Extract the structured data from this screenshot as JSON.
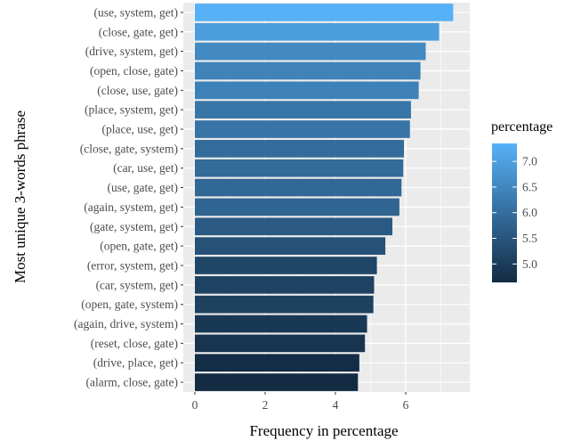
{
  "chart_data": {
    "type": "bar",
    "orientation": "horizontal",
    "xlabel": "Frequency in percentage",
    "ylabel": "Most unique 3-words phrase",
    "xlim": [
      0,
      7.6
    ],
    "xticks": [
      0,
      2,
      4,
      6
    ],
    "categories": [
      "(use, system, get)",
      "(close, gate, get)",
      "(drive, system, get)",
      "(open, close, gate)",
      "(close, use, gate)",
      "(place, system, get)",
      "(place, use, get)",
      "(close, gate, system)",
      "(car, use, get)",
      "(use, gate, get)",
      "(again, system, get)",
      "(gate, system, get)",
      "(open, gate, get)",
      "(error, system, get)",
      "(car, system, get)",
      "(open, gate, system)",
      "(again, drive, system)",
      "(reset, close, gate)",
      "(drive, place, get)",
      "(alarm, close, gate)"
    ],
    "values": [
      7.35,
      6.95,
      6.57,
      6.42,
      6.37,
      6.15,
      6.12,
      5.95,
      5.93,
      5.88,
      5.82,
      5.62,
      5.42,
      5.18,
      5.1,
      5.08,
      4.9,
      4.84,
      4.68,
      4.64
    ],
    "legend": {
      "title": "percentage",
      "position": "right",
      "min": 4.64,
      "max": 7.35,
      "ticks": [
        5.0,
        5.5,
        6.0,
        6.5,
        7.0
      ],
      "tick_labels": [
        "5.0",
        "5.5",
        "6.0",
        "6.5",
        "7.0"
      ],
      "low_color": "#132b43",
      "high_color": "#56b1f7"
    },
    "grid": true,
    "panel_color": "#ebebeb",
    "grid_color": "#ffffff"
  }
}
